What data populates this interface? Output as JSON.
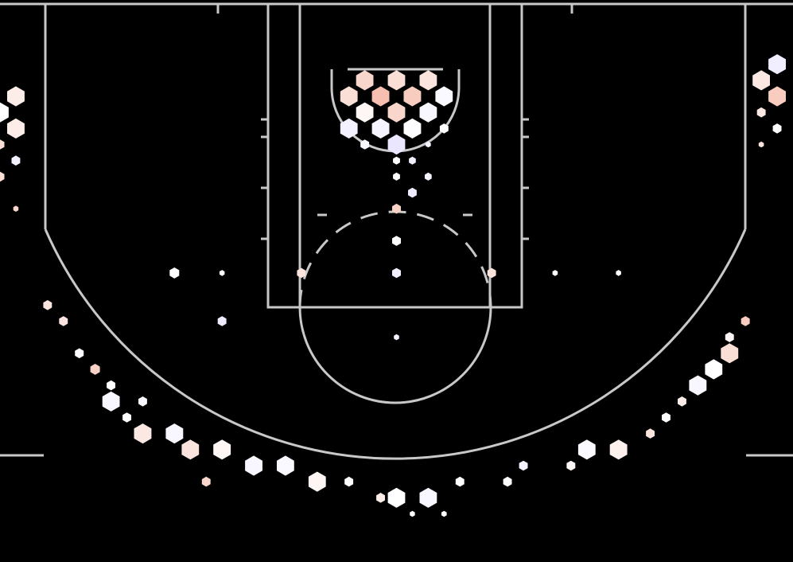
{
  "chart_data": {
    "type": "hexbin",
    "x_unit": "ft",
    "y_unit": "ft",
    "xlim": [
      -25,
      25
    ],
    "ylim": [
      -4,
      31
    ],
    "grid": false,
    "hex_radius_ft": 0.55,
    "color_scale": {
      "cold": "#dcd5ff",
      "neutral": "#ffffff",
      "hot": "#f2a48c"
    },
    "hexes": [
      {
        "x": -2,
        "y": 1,
        "size": 1.0,
        "heat": 0.45
      },
      {
        "x": 0,
        "y": 1,
        "size": 1.0,
        "heat": 0.35
      },
      {
        "x": 2,
        "y": 1,
        "size": 1.0,
        "heat": 0.3
      },
      {
        "x": -3,
        "y": 2,
        "size": 1.0,
        "heat": 0.35
      },
      {
        "x": -1,
        "y": 2,
        "size": 1.0,
        "heat": 0.7
      },
      {
        "x": 1,
        "y": 2,
        "size": 1.0,
        "heat": 0.55
      },
      {
        "x": 3,
        "y": 2,
        "size": 1.0,
        "heat": -0.15
      },
      {
        "x": -2,
        "y": 3,
        "size": 1.0,
        "heat": 0.1
      },
      {
        "x": 0,
        "y": 3,
        "size": 1.0,
        "heat": 0.45
      },
      {
        "x": 2,
        "y": 3,
        "size": 1.0,
        "heat": -0.2
      },
      {
        "x": -3,
        "y": 4,
        "size": 1.0,
        "heat": -0.35
      },
      {
        "x": -1,
        "y": 4,
        "size": 1.0,
        "heat": -0.25
      },
      {
        "x": 1,
        "y": 4,
        "size": 1.0,
        "heat": -0.05
      },
      {
        "x": 3,
        "y": 4,
        "size": 0.5,
        "heat": 0.0
      },
      {
        "x": -2,
        "y": 5,
        "size": 0.5,
        "heat": -0.2
      },
      {
        "x": 0,
        "y": 5,
        "size": 1.0,
        "heat": -0.6
      },
      {
        "x": 2,
        "y": 5,
        "size": 0.3,
        "heat": -0.3
      },
      {
        "x": 0,
        "y": 6,
        "size": 0.4,
        "heat": 0.0
      },
      {
        "x": 1,
        "y": 6,
        "size": 0.4,
        "heat": -0.4
      },
      {
        "x": 2,
        "y": 7,
        "size": 0.4,
        "heat": -0.3
      },
      {
        "x": 0,
        "y": 7,
        "size": 0.4,
        "heat": 0.0
      },
      {
        "x": 1,
        "y": 8,
        "size": 0.5,
        "heat": -0.5
      },
      {
        "x": 0,
        "y": 9,
        "size": 0.5,
        "heat": 0.5
      },
      {
        "x": 0,
        "y": 11,
        "size": 0.5,
        "heat": 0.0
      },
      {
        "x": -6,
        "y": 13,
        "size": 0.5,
        "heat": 0.3
      },
      {
        "x": 6,
        "y": 13,
        "size": 0.5,
        "heat": 0.3
      },
      {
        "x": 0,
        "y": 13,
        "size": 0.5,
        "heat": -0.4
      },
      {
        "x": -14,
        "y": 13,
        "size": 0.55,
        "heat": 0.0
      },
      {
        "x": -11,
        "y": 13,
        "size": 0.3,
        "heat": 0.0
      },
      {
        "x": 10,
        "y": 13,
        "size": 0.3,
        "heat": 0.0
      },
      {
        "x": 14,
        "y": 13,
        "size": 0.3,
        "heat": 0.0
      },
      {
        "x": -11,
        "y": 16,
        "size": 0.5,
        "heat": -0.5
      },
      {
        "x": 0,
        "y": 17,
        "size": 0.3,
        "heat": -0.3
      },
      {
        "x": -24,
        "y": 2,
        "size": 1.0,
        "heat": 0.2
      },
      {
        "x": -25,
        "y": 3,
        "size": 1.0,
        "heat": 0.0
      },
      {
        "x": -24,
        "y": 4,
        "size": 1.0,
        "heat": 0.2
      },
      {
        "x": -25,
        "y": 5,
        "size": 0.5,
        "heat": 0.35
      },
      {
        "x": -24,
        "y": 6,
        "size": 0.5,
        "heat": -0.35
      },
      {
        "x": -25,
        "y": 7,
        "size": 0.5,
        "heat": 0.35
      },
      {
        "x": -24,
        "y": 9,
        "size": 0.3,
        "heat": 0.45
      },
      {
        "x": 24,
        "y": 0,
        "size": 1.0,
        "heat": -0.4
      },
      {
        "x": 23,
        "y": 1,
        "size": 1.0,
        "heat": 0.25
      },
      {
        "x": 24,
        "y": 2,
        "size": 1.0,
        "heat": 0.55
      },
      {
        "x": 23,
        "y": 3,
        "size": 0.5,
        "heat": 0.25
      },
      {
        "x": 24,
        "y": 4,
        "size": 0.5,
        "heat": 0.0
      },
      {
        "x": 23,
        "y": 5,
        "size": 0.3,
        "heat": 0.3
      },
      {
        "x": 22,
        "y": 16,
        "size": 0.5,
        "heat": 0.55
      },
      {
        "x": 21,
        "y": 17,
        "size": 0.5,
        "heat": 0.1
      },
      {
        "x": 21,
        "y": 18,
        "size": 1.0,
        "heat": 0.35
      },
      {
        "x": 20,
        "y": 19,
        "size": 1.0,
        "heat": 0.0
      },
      {
        "x": 19,
        "y": 20,
        "size": 1.0,
        "heat": -0.2
      },
      {
        "x": 18,
        "y": 21,
        "size": 0.5,
        "heat": 0.2
      },
      {
        "x": 17,
        "y": 22,
        "size": 0.5,
        "heat": 0.0
      },
      {
        "x": 16,
        "y": 23,
        "size": 0.5,
        "heat": 0.3
      },
      {
        "x": 14,
        "y": 24,
        "size": 1.0,
        "heat": 0.15
      },
      {
        "x": 12,
        "y": 24,
        "size": 1.0,
        "heat": -0.15
      },
      {
        "x": 11,
        "y": 25,
        "size": 0.5,
        "heat": 0.1
      },
      {
        "x": 8,
        "y": 25,
        "size": 0.5,
        "heat": -0.3
      },
      {
        "x": -22,
        "y": 15,
        "size": 0.5,
        "heat": 0.3
      },
      {
        "x": -21,
        "y": 16,
        "size": 0.5,
        "heat": 0.3
      },
      {
        "x": -20,
        "y": 18,
        "size": 0.5,
        "heat": -0.1
      },
      {
        "x": -19,
        "y": 19,
        "size": 0.55,
        "heat": 0.5
      },
      {
        "x": -18,
        "y": 20,
        "size": 0.5,
        "heat": 0.0
      },
      {
        "x": -18,
        "y": 21,
        "size": 1.0,
        "heat": -0.2
      },
      {
        "x": -16,
        "y": 21,
        "size": 0.5,
        "heat": -0.2
      },
      {
        "x": -17,
        "y": 22,
        "size": 0.5,
        "heat": 0.0
      },
      {
        "x": -16,
        "y": 23,
        "size": 1.0,
        "heat": 0.25
      },
      {
        "x": -14,
        "y": 23,
        "size": 1.0,
        "heat": -0.2
      },
      {
        "x": -13,
        "y": 24,
        "size": 1.0,
        "heat": 0.3
      },
      {
        "x": -11,
        "y": 24,
        "size": 1.0,
        "heat": 0.1
      },
      {
        "x": -9,
        "y": 25,
        "size": 1.0,
        "heat": -0.2
      },
      {
        "x": -7,
        "y": 25,
        "size": 1.0,
        "heat": -0.15
      },
      {
        "x": -5,
        "y": 26,
        "size": 1.0,
        "heat": 0.1
      },
      {
        "x": -3,
        "y": 26,
        "size": 0.5,
        "heat": 0.0
      },
      {
        "x": -1,
        "y": 27,
        "size": 0.5,
        "heat": 0.2
      },
      {
        "x": 0,
        "y": 27,
        "size": 1.0,
        "heat": 0.0
      },
      {
        "x": 2,
        "y": 27,
        "size": 1.0,
        "heat": -0.2
      },
      {
        "x": 4,
        "y": 26,
        "size": 0.5,
        "heat": 0.0
      },
      {
        "x": 7,
        "y": 26,
        "size": 0.5,
        "heat": 0.0
      },
      {
        "x": -12,
        "y": 26,
        "size": 0.5,
        "heat": 0.45
      },
      {
        "x": 1,
        "y": 28,
        "size": 0.3,
        "heat": 0.0
      },
      {
        "x": 3,
        "y": 28,
        "size": 0.3,
        "heat": 0.0
      }
    ]
  }
}
